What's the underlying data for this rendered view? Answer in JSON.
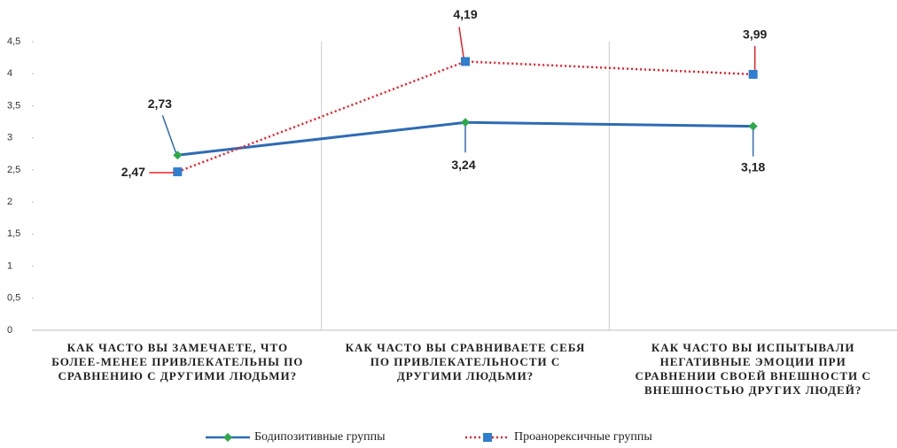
{
  "chart_data": {
    "type": "line",
    "categories": [
      "КАК ЧАСТО ВЫ ЗАМЕЧАЕТЕ, ЧТО\nБОЛЕЕ-МЕНЕЕ ПРИВЛЕКАТЕЛЬНЫ ПО\nСРАВНЕНИЮ С ДРУГИМИ ЛЮДЬМИ?",
      "КАК ЧАСТО ВЫ СРАВНИВАЕТЕ СЕБЯ\nПО ПРИВЛЕКАТЕЛЬНОСТИ С\nДРУГИМИ ЛЮДЬМИ?",
      "КАК ЧАСТО ВЫ ИСПЫТЫВАЛИ\nНЕГАТИВНЫЕ ЭМОЦИИ ПРИ\nСРАВНЕНИИ СВОЕЙ ВНЕШНОСТИ С\nВНЕШНОСТЬЮ ДРУГИХ ЛЮДЕЙ?"
    ],
    "series": [
      {
        "name": "Бодипозитивные группы",
        "color": "#2e6bb5",
        "marker": "diamond",
        "marker_color": "#2ea84a",
        "line_style": "solid",
        "values": [
          2.73,
          3.24,
          3.18
        ],
        "value_labels": [
          "2,73",
          "3,24",
          "3,18"
        ]
      },
      {
        "name": "Проанорексичные группы",
        "color": "#e8202a",
        "marker": "square",
        "marker_color": "#2f7fd0",
        "line_style": "dotted",
        "values": [
          2.47,
          4.19,
          3.99
        ],
        "value_labels": [
          "2,47",
          "4,19",
          "3,99"
        ]
      }
    ],
    "ylim": [
      0,
      4.5
    ],
    "yticks": [
      0,
      {
        "value": 0.5,
        "label": "0,5"
      },
      1,
      {
        "value": 1.5,
        "label": "1,5"
      },
      2,
      {
        "value": 2.5,
        "label": "2,5"
      },
      3,
      {
        "value": 3.5,
        "label": "3,5"
      },
      4,
      {
        "value": 4.5,
        "label": "4,5"
      }
    ],
    "grid": false,
    "legend": "bottom"
  }
}
